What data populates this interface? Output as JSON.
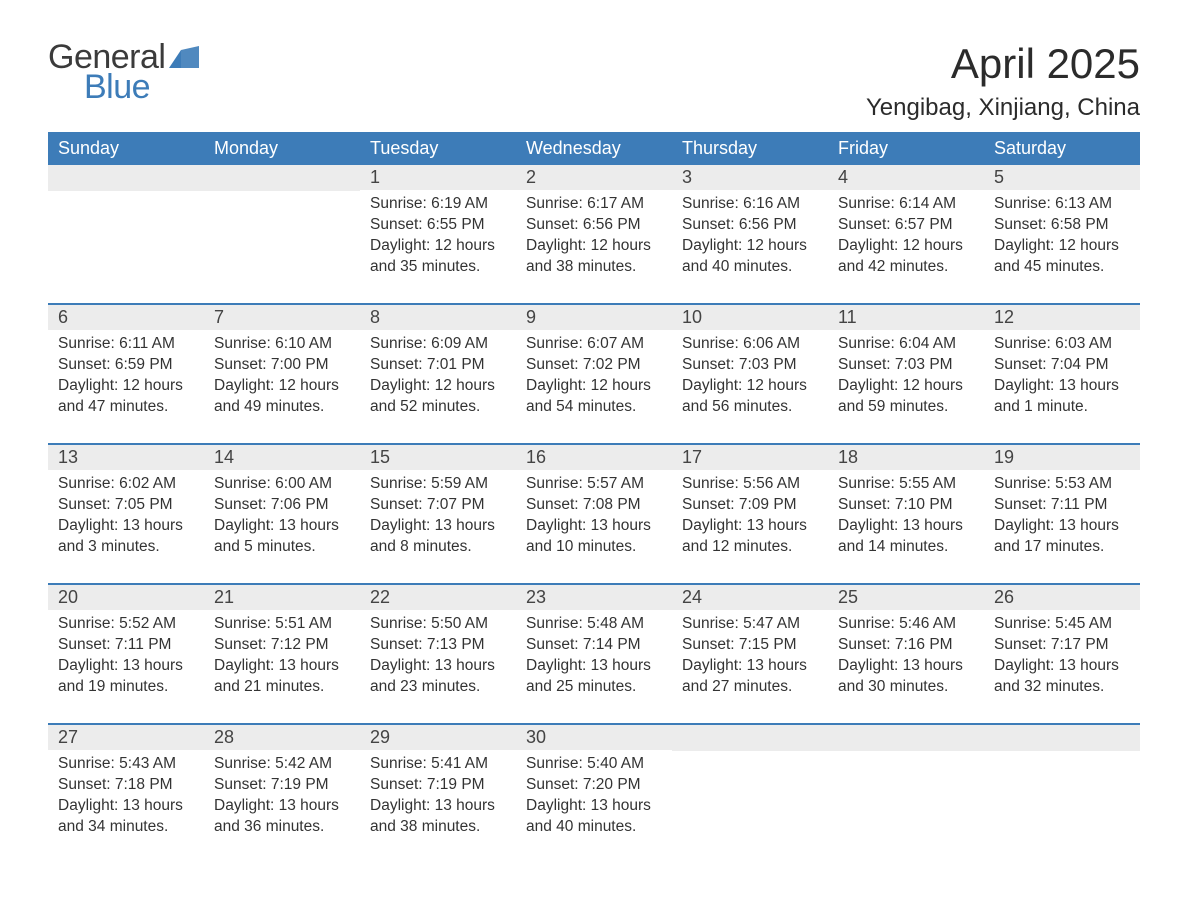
{
  "logo": {
    "line1": "General",
    "line2": "Blue",
    "flag_color": "#3d7cb8"
  },
  "title": "April 2025",
  "location": "Yengibag, Xinjiang, China",
  "header_bg": "#3d7cb8",
  "header_text_color": "#ffffff",
  "daynum_bg": "#ececec",
  "week_border_color": "#3d7cb8",
  "body_text_color": "#333333",
  "weekdays": [
    "Sunday",
    "Monday",
    "Tuesday",
    "Wednesday",
    "Thursday",
    "Friday",
    "Saturday"
  ],
  "weeks": [
    [
      {
        "empty": true
      },
      {
        "empty": true
      },
      {
        "n": "1",
        "sunrise": "6:19 AM",
        "sunset": "6:55 PM",
        "daylight": "12 hours and 35 minutes."
      },
      {
        "n": "2",
        "sunrise": "6:17 AM",
        "sunset": "6:56 PM",
        "daylight": "12 hours and 38 minutes."
      },
      {
        "n": "3",
        "sunrise": "6:16 AM",
        "sunset": "6:56 PM",
        "daylight": "12 hours and 40 minutes."
      },
      {
        "n": "4",
        "sunrise": "6:14 AM",
        "sunset": "6:57 PM",
        "daylight": "12 hours and 42 minutes."
      },
      {
        "n": "5",
        "sunrise": "6:13 AM",
        "sunset": "6:58 PM",
        "daylight": "12 hours and 45 minutes."
      }
    ],
    [
      {
        "n": "6",
        "sunrise": "6:11 AM",
        "sunset": "6:59 PM",
        "daylight": "12 hours and 47 minutes."
      },
      {
        "n": "7",
        "sunrise": "6:10 AM",
        "sunset": "7:00 PM",
        "daylight": "12 hours and 49 minutes."
      },
      {
        "n": "8",
        "sunrise": "6:09 AM",
        "sunset": "7:01 PM",
        "daylight": "12 hours and 52 minutes."
      },
      {
        "n": "9",
        "sunrise": "6:07 AM",
        "sunset": "7:02 PM",
        "daylight": "12 hours and 54 minutes."
      },
      {
        "n": "10",
        "sunrise": "6:06 AM",
        "sunset": "7:03 PM",
        "daylight": "12 hours and 56 minutes."
      },
      {
        "n": "11",
        "sunrise": "6:04 AM",
        "sunset": "7:03 PM",
        "daylight": "12 hours and 59 minutes."
      },
      {
        "n": "12",
        "sunrise": "6:03 AM",
        "sunset": "7:04 PM",
        "daylight": "13 hours and 1 minute."
      }
    ],
    [
      {
        "n": "13",
        "sunrise": "6:02 AM",
        "sunset": "7:05 PM",
        "daylight": "13 hours and 3 minutes."
      },
      {
        "n": "14",
        "sunrise": "6:00 AM",
        "sunset": "7:06 PM",
        "daylight": "13 hours and 5 minutes."
      },
      {
        "n": "15",
        "sunrise": "5:59 AM",
        "sunset": "7:07 PM",
        "daylight": "13 hours and 8 minutes."
      },
      {
        "n": "16",
        "sunrise": "5:57 AM",
        "sunset": "7:08 PM",
        "daylight": "13 hours and 10 minutes."
      },
      {
        "n": "17",
        "sunrise": "5:56 AM",
        "sunset": "7:09 PM",
        "daylight": "13 hours and 12 minutes."
      },
      {
        "n": "18",
        "sunrise": "5:55 AM",
        "sunset": "7:10 PM",
        "daylight": "13 hours and 14 minutes."
      },
      {
        "n": "19",
        "sunrise": "5:53 AM",
        "sunset": "7:11 PM",
        "daylight": "13 hours and 17 minutes."
      }
    ],
    [
      {
        "n": "20",
        "sunrise": "5:52 AM",
        "sunset": "7:11 PM",
        "daylight": "13 hours and 19 minutes."
      },
      {
        "n": "21",
        "sunrise": "5:51 AM",
        "sunset": "7:12 PM",
        "daylight": "13 hours and 21 minutes."
      },
      {
        "n": "22",
        "sunrise": "5:50 AM",
        "sunset": "7:13 PM",
        "daylight": "13 hours and 23 minutes."
      },
      {
        "n": "23",
        "sunrise": "5:48 AM",
        "sunset": "7:14 PM",
        "daylight": "13 hours and 25 minutes."
      },
      {
        "n": "24",
        "sunrise": "5:47 AM",
        "sunset": "7:15 PM",
        "daylight": "13 hours and 27 minutes."
      },
      {
        "n": "25",
        "sunrise": "5:46 AM",
        "sunset": "7:16 PM",
        "daylight": "13 hours and 30 minutes."
      },
      {
        "n": "26",
        "sunrise": "5:45 AM",
        "sunset": "7:17 PM",
        "daylight": "13 hours and 32 minutes."
      }
    ],
    [
      {
        "n": "27",
        "sunrise": "5:43 AM",
        "sunset": "7:18 PM",
        "daylight": "13 hours and 34 minutes."
      },
      {
        "n": "28",
        "sunrise": "5:42 AM",
        "sunset": "7:19 PM",
        "daylight": "13 hours and 36 minutes."
      },
      {
        "n": "29",
        "sunrise": "5:41 AM",
        "sunset": "7:19 PM",
        "daylight": "13 hours and 38 minutes."
      },
      {
        "n": "30",
        "sunrise": "5:40 AM",
        "sunset": "7:20 PM",
        "daylight": "13 hours and 40 minutes."
      },
      {
        "empty": true
      },
      {
        "empty": true
      },
      {
        "empty": true
      }
    ]
  ],
  "labels": {
    "sunrise": "Sunrise: ",
    "sunset": "Sunset: ",
    "daylight": "Daylight: "
  }
}
